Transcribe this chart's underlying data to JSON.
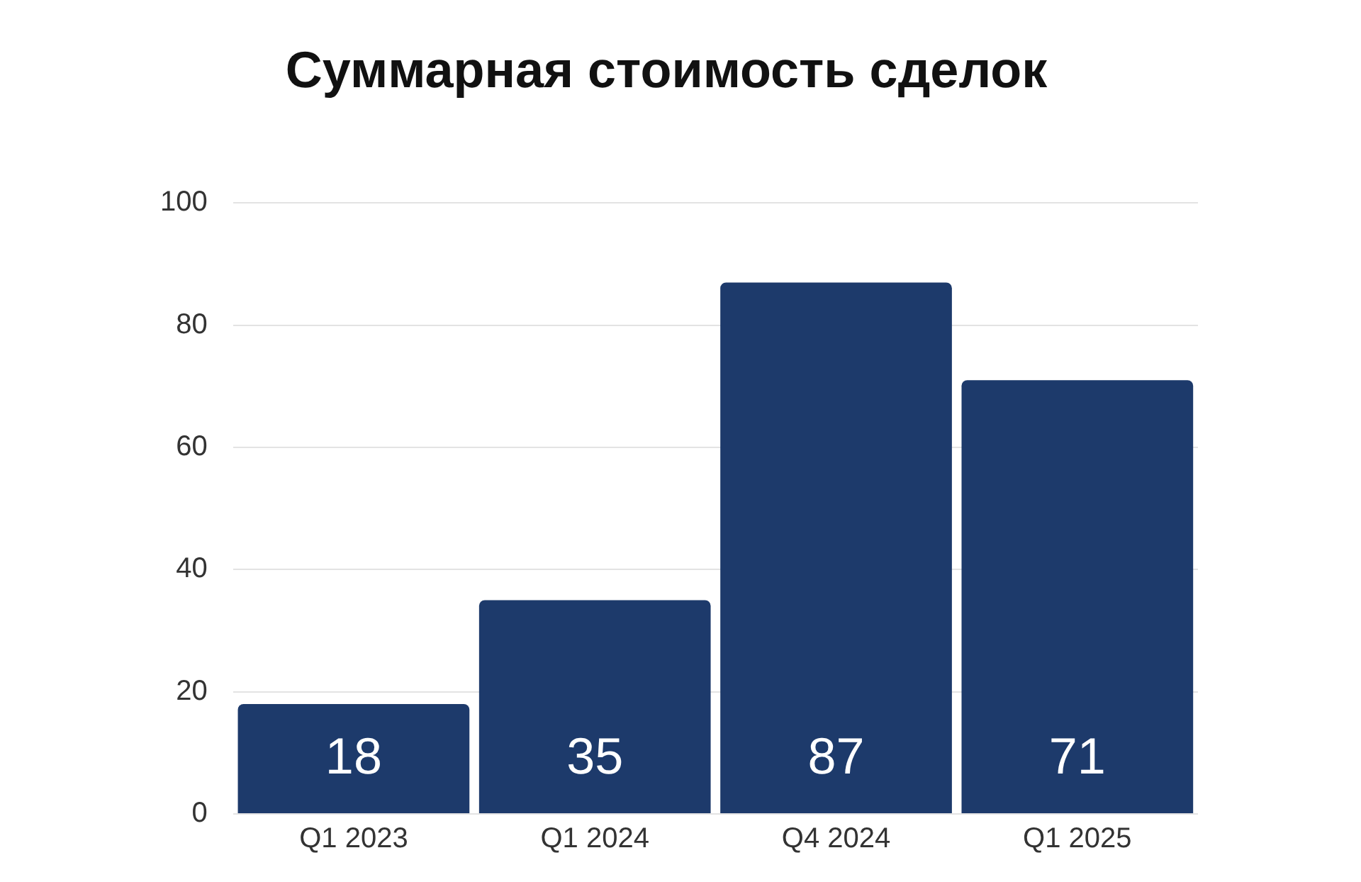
{
  "chart_data": {
    "type": "bar",
    "title": "Суммарная стоимость сделок",
    "categories": [
      "Q1 2023",
      "Q1 2024",
      "Q4 2024",
      "Q1 2025"
    ],
    "values": [
      18,
      35,
      87,
      71
    ],
    "color": "#1d3a6b",
    "ylim": [
      0,
      100
    ],
    "yticks": [
      0,
      20,
      40,
      60,
      80,
      100
    ],
    "grid": "y",
    "legend": false,
    "data_labels": true
  }
}
